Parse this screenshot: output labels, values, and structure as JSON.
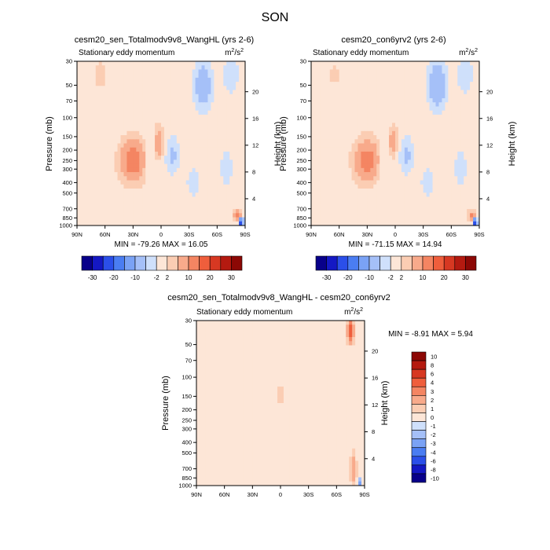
{
  "page_title": "SON",
  "colors": {
    "cb_top": [
      "#08008a",
      "#1418c4",
      "#2b4fe9",
      "#4a7df2",
      "#7aa2f5",
      "#a5c0f8",
      "#cfe0fb",
      "#fde6d7",
      "#fbcdb3",
      "#f8aa8b",
      "#f48562",
      "#ef5e3c",
      "#d73822",
      "#b41a10",
      "#8c0805"
    ],
    "cb_diff": [
      "#08008a",
      "#1418c4",
      "#2b4fe9",
      "#4a7df2",
      "#7aa2f5",
      "#a5c0f8",
      "#cfe0fb",
      "#fde6d7",
      "#fbcdb3",
      "#f8aa8b",
      "#f48562",
      "#ef5e3c",
      "#d73822",
      "#b41a10",
      "#8c0805"
    ],
    "field_bg": "#fde9db",
    "neg_bg": "#d9e7fb"
  },
  "chart_data": [
    {
      "type": "heatmap",
      "title": "cesm20_sen_Totalmodv9v8_WangHL (yrs 2-6)",
      "subtitle_left": "Stationary eddy momentum",
      "units_base": "m",
      "units_exp1": "2",
      "units_mid": "/s",
      "units_exp2": "2",
      "ylabel": "Pressure (mb)",
      "ylabel_right": "Height (km)",
      "x_ticks": [
        "90N",
        "60N",
        "30N",
        "0",
        "30S",
        "60S",
        "90S"
      ],
      "x_values": [
        90,
        60,
        30,
        0,
        -30,
        -60,
        -90
      ],
      "y_ticks": [
        "30",
        "50",
        "70",
        "100",
        "150",
        "200",
        "250",
        "300",
        "400",
        "500",
        "700",
        "850",
        "1000"
      ],
      "y_values": [
        30,
        50,
        70,
        100,
        150,
        200,
        250,
        300,
        400,
        500,
        700,
        850,
        1000
      ],
      "height_ticks": [
        "4",
        "8",
        "12",
        "16",
        "20"
      ],
      "height_values": [
        4,
        8,
        12,
        16,
        20
      ],
      "stats": "MIN = -79.26  MAX = 16.05",
      "colorbar_labels": [
        "-30",
        "-20",
        "-10",
        "-2",
        "2",
        "10",
        "20",
        "30"
      ],
      "colorbar_levels": [
        -40,
        -30,
        -25,
        -20,
        -15,
        -10,
        -5,
        -2,
        2,
        5,
        10,
        15,
        20,
        25,
        30,
        40
      ],
      "features": [
        {
          "lat": 30,
          "p": 250,
          "value": 14,
          "slat": 14,
          "sp": 0.45
        },
        {
          "lat": 2,
          "p": 170,
          "value": 9,
          "slat": 5,
          "sp": 0.35
        },
        {
          "lat": 65,
          "p": 40,
          "value": 4,
          "slat": 8,
          "sp": 0.3
        },
        {
          "lat": 12,
          "p": 260,
          "value": -4,
          "slat": 6,
          "sp": 0.35
        },
        {
          "lat": -12,
          "p": 220,
          "value": -6,
          "slat": 8,
          "sp": 0.4
        },
        {
          "lat": -45,
          "p": 50,
          "value": -9,
          "slat": 10,
          "sp": 0.5
        },
        {
          "lat": -75,
          "p": 40,
          "value": -5,
          "slat": 8,
          "sp": 0.4
        },
        {
          "lat": -35,
          "p": 400,
          "value": -4,
          "slat": 8,
          "sp": 0.35
        },
        {
          "lat": -70,
          "p": 300,
          "value": -5,
          "slat": 6,
          "sp": 0.4
        },
        {
          "lat": -82,
          "p": 820,
          "value": 12,
          "slat": 4,
          "sp": 0.12
        },
        {
          "lat": -86,
          "p": 920,
          "value": -60,
          "slat": 2,
          "sp": 0.05
        }
      ]
    },
    {
      "type": "heatmap",
      "title": "cesm20_con6yrv2 (yrs 2-6)",
      "subtitle_left": "Stationary eddy momentum",
      "units_base": "m",
      "units_exp1": "2",
      "units_mid": "/s",
      "units_exp2": "2",
      "ylabel": "Pressure (mb)",
      "ylabel_right": "Height (km)",
      "x_ticks": [
        "90N",
        "60N",
        "30N",
        "0",
        "30S",
        "60S",
        "90S"
      ],
      "x_values": [
        90,
        60,
        30,
        0,
        -30,
        -60,
        -90
      ],
      "y_ticks": [
        "30",
        "50",
        "70",
        "100",
        "150",
        "200",
        "250",
        "300",
        "400",
        "500",
        "700",
        "850",
        "1000"
      ],
      "y_values": [
        30,
        50,
        70,
        100,
        150,
        200,
        250,
        300,
        400,
        500,
        700,
        850,
        1000
      ],
      "height_ticks": [
        "4",
        "8",
        "12",
        "16",
        "20"
      ],
      "height_values": [
        4,
        8,
        12,
        16,
        20
      ],
      "stats": "MIN = -71.15  MAX = 14.94",
      "colorbar_labels": [
        "-30",
        "-20",
        "-10",
        "-2",
        "2",
        "10",
        "20",
        "30"
      ],
      "colorbar_levels": [
        -40,
        -30,
        -25,
        -20,
        -15,
        -10,
        -5,
        -2,
        2,
        5,
        10,
        15,
        20,
        25,
        30,
        40
      ],
      "features": [
        {
          "lat": 30,
          "p": 250,
          "value": 13,
          "slat": 14,
          "sp": 0.45
        },
        {
          "lat": 2,
          "p": 170,
          "value": 8,
          "slat": 5,
          "sp": 0.35
        },
        {
          "lat": 65,
          "p": 40,
          "value": 3,
          "slat": 8,
          "sp": 0.3
        },
        {
          "lat": 12,
          "p": 260,
          "value": -4,
          "slat": 6,
          "sp": 0.35
        },
        {
          "lat": -12,
          "p": 220,
          "value": -6,
          "slat": 8,
          "sp": 0.4
        },
        {
          "lat": -45,
          "p": 50,
          "value": -10,
          "slat": 10,
          "sp": 0.5
        },
        {
          "lat": -75,
          "p": 40,
          "value": -5,
          "slat": 8,
          "sp": 0.4
        },
        {
          "lat": -35,
          "p": 400,
          "value": -4,
          "slat": 8,
          "sp": 0.35
        },
        {
          "lat": -70,
          "p": 300,
          "value": -5,
          "slat": 6,
          "sp": 0.4
        },
        {
          "lat": -82,
          "p": 820,
          "value": 11,
          "slat": 4,
          "sp": 0.12
        },
        {
          "lat": -86,
          "p": 920,
          "value": -55,
          "slat": 2,
          "sp": 0.05
        }
      ]
    },
    {
      "type": "heatmap",
      "title": "cesm20_sen_Totalmodv9v8_WangHL - cesm20_con6yrv2",
      "subtitle_left": "Stationary eddy momentum",
      "units_base": "m",
      "units_exp1": "2",
      "units_mid": "/s",
      "units_exp2": "2",
      "ylabel": "Pressure (mb)",
      "ylabel_right": "Height (km)",
      "x_ticks": [
        "90N",
        "60N",
        "30N",
        "0",
        "30S",
        "60S",
        "90S"
      ],
      "x_values": [
        90,
        60,
        30,
        0,
        -30,
        -60,
        -90
      ],
      "y_ticks": [
        "30",
        "50",
        "70",
        "100",
        "150",
        "200",
        "250",
        "300",
        "400",
        "500",
        "700",
        "850",
        "1000"
      ],
      "y_values": [
        30,
        50,
        70,
        100,
        150,
        200,
        250,
        300,
        400,
        500,
        700,
        850,
        1000
      ],
      "height_ticks": [
        "4",
        "8",
        "12",
        "16",
        "20"
      ],
      "height_values": [
        4,
        8,
        12,
        16,
        20
      ],
      "stats": "MIN = -8.91  MAX =  5.94",
      "colorbar_labels": [
        "10",
        "8",
        "6",
        "4",
        "3",
        "2",
        "1",
        "0",
        "-1",
        "-2",
        "-3",
        "-4",
        "-6",
        "-8",
        "-10"
      ],
      "colorbar_levels": [
        -12,
        -10,
        -8,
        -6,
        -4,
        -3,
        -2,
        -1,
        0,
        1,
        2,
        3,
        4,
        6,
        8,
        10,
        12
      ],
      "features": [
        {
          "lat": -75,
          "p": 38,
          "value": 5.5,
          "slat": 4,
          "sp": 0.25
        },
        {
          "lat": -78,
          "p": 700,
          "value": 3,
          "slat": 4,
          "sp": 0.4
        },
        {
          "lat": 0,
          "p": 140,
          "value": 1.5,
          "slat": 6,
          "sp": 0.3
        },
        {
          "lat": -15,
          "p": 150,
          "value": -0.8,
          "slat": 6,
          "sp": 0.3
        },
        {
          "lat": 60,
          "p": 70,
          "value": -0.6,
          "slat": 10,
          "sp": 0.4
        },
        {
          "lat": -40,
          "p": 80,
          "value": -0.6,
          "slat": 8,
          "sp": 0.4
        },
        {
          "lat": -85,
          "p": 920,
          "value": -6,
          "slat": 2,
          "sp": 0.05
        }
      ]
    }
  ]
}
